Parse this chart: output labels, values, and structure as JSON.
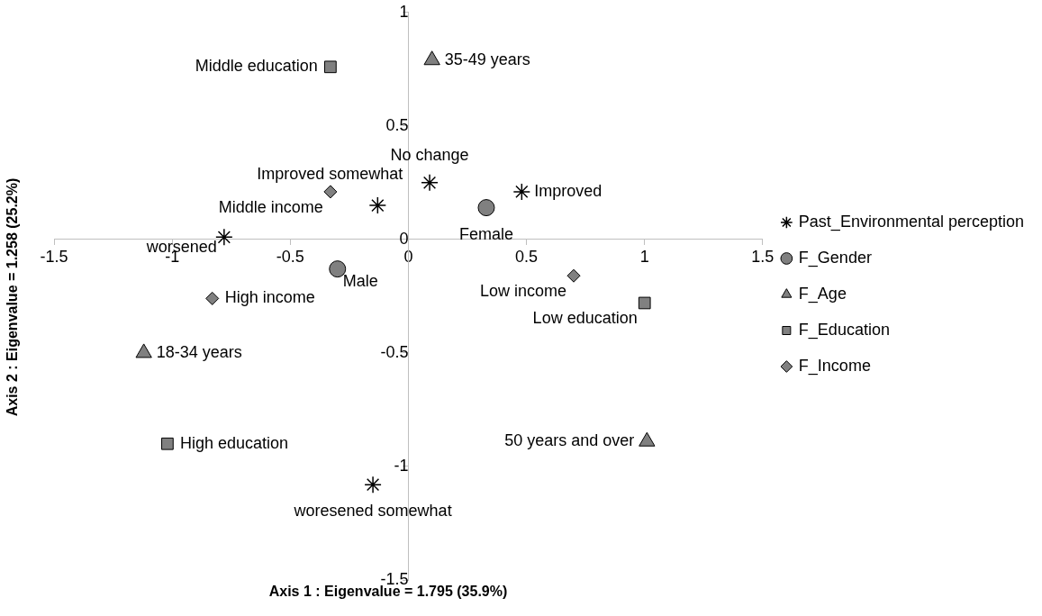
{
  "chart_data": {
    "type": "scatter",
    "xlabel": "Axis 1 : Eigenvalue = 1.795 (35.9%)",
    "ylabel": "Axis 2 : Eigenvalue = 1.258 (25.2%)",
    "xlim": [
      -1.5,
      1.5
    ],
    "xticks": [
      -1.5,
      -1,
      -0.5,
      0,
      0.5,
      1,
      1.5
    ],
    "ylim": [
      -1.5,
      1
    ],
    "yticks": [
      -1.5,
      -1,
      -0.5,
      0,
      0.5,
      1
    ],
    "grid": false,
    "legend": "right",
    "series": [
      {
        "name": "Past_Environmental perception",
        "color": "#000000",
        "marker": "cross",
        "x": [
          0.09,
          0.48,
          -0.13,
          -0.78,
          -0.15
        ],
        "values": [
          0.25,
          0.21,
          0.15,
          0.01,
          -1.08
        ]
      },
      {
        "name": "F_Gender",
        "color": "#808080",
        "marker": "circle",
        "x": [
          0.33,
          -0.3
        ],
        "values": [
          0.14,
          -0.13
        ]
      },
      {
        "name": "F_Age",
        "color": "#808080",
        "marker": "triangle",
        "x": [
          0.1,
          -1.12,
          1.01
        ],
        "values": [
          0.79,
          -0.5,
          -0.89
        ]
      },
      {
        "name": "F_Education",
        "color": "#808080",
        "marker": "square",
        "x": [
          -0.33,
          1.0,
          -1.02
        ],
        "values": [
          0.76,
          -0.28,
          -0.9
        ]
      },
      {
        "name": "F_Income",
        "color": "#808080",
        "marker": "diamond",
        "x": [
          -0.33,
          -0.83,
          0.7
        ],
        "values": [
          0.21,
          -0.26,
          -0.16
        ]
      }
    ],
    "annotations": [
      {
        "text": "No change",
        "x": 0.09,
        "y": 0.25
      },
      {
        "text": "Improved",
        "x": 0.48,
        "y": 0.21
      },
      {
        "text": "Improved somewhat",
        "x": -0.13,
        "y": 0.15
      },
      {
        "text": "worsened",
        "x": -0.78,
        "y": 0.01
      },
      {
        "text": "woresened somewhat",
        "x": -0.15,
        "y": -1.08
      },
      {
        "text": "Female",
        "x": 0.33,
        "y": 0.14
      },
      {
        "text": "Male",
        "x": -0.3,
        "y": -0.13
      },
      {
        "text": "35-49 years",
        "x": 0.1,
        "y": 0.79
      },
      {
        "text": "18-34 years",
        "x": -1.12,
        "y": -0.5
      },
      {
        "text": "50 years and over",
        "x": 1.01,
        "y": -0.89
      },
      {
        "text": "Middle education",
        "x": -0.33,
        "y": 0.76
      },
      {
        "text": "Low education",
        "x": 1.0,
        "y": -0.28
      },
      {
        "text": "High education",
        "x": -1.02,
        "y": -0.9
      },
      {
        "text": "Middle income",
        "x": -0.33,
        "y": 0.21
      },
      {
        "text": "High income",
        "x": -0.83,
        "y": -0.26
      },
      {
        "text": "Low income",
        "x": 0.7,
        "y": -0.16
      }
    ]
  }
}
